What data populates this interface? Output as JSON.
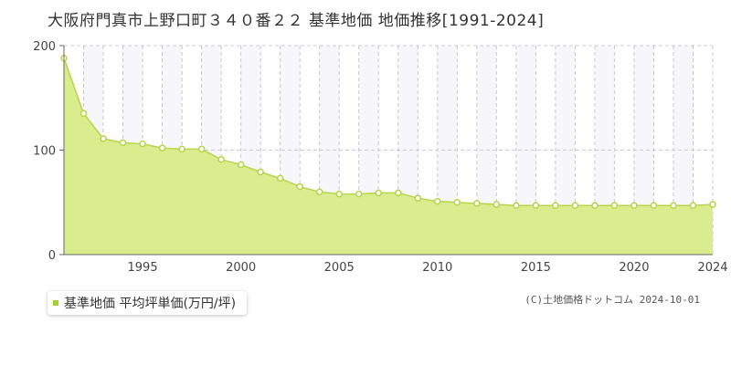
{
  "title": "大阪府門真市上野口町３４０番２２ 基準地価 地価推移[1991-2024]",
  "legend": {
    "label": "基準地価 平均坪単価(万円/坪)"
  },
  "credit": "(C)土地価格ドットコム 2024-10-01",
  "colors": {
    "fill": "#d9ec8e",
    "line": "#b5d64a",
    "point_stroke": "#b5d64a",
    "point_fill": "#ffffff",
    "legend_marker": "#a6cf2f"
  },
  "chart_data": {
    "type": "area",
    "x": [
      1991,
      1992,
      1993,
      1994,
      1995,
      1996,
      1997,
      1998,
      1999,
      2000,
      2001,
      2002,
      2003,
      2004,
      2005,
      2006,
      2007,
      2008,
      2009,
      2010,
      2011,
      2012,
      2013,
      2014,
      2015,
      2016,
      2017,
      2018,
      2019,
      2020,
      2021,
      2022,
      2023,
      2024
    ],
    "series": [
      {
        "values": [
          188,
          135,
          111,
          107,
          106,
          102,
          101,
          101,
          91,
          86,
          79,
          73,
          65,
          60,
          58,
          58,
          59,
          59,
          54,
          51,
          50,
          49,
          48,
          47,
          47,
          47,
          47,
          47,
          47,
          47,
          47,
          47,
          47,
          48
        ]
      }
    ],
    "ylim": [
      0,
      200
    ],
    "xlim": [
      1991,
      2024
    ],
    "y_ticks": [
      0,
      100,
      200
    ],
    "x_tick_labels": [
      1995,
      2000,
      2005,
      2010,
      2015,
      2020,
      2024
    ],
    "grid": true
  }
}
